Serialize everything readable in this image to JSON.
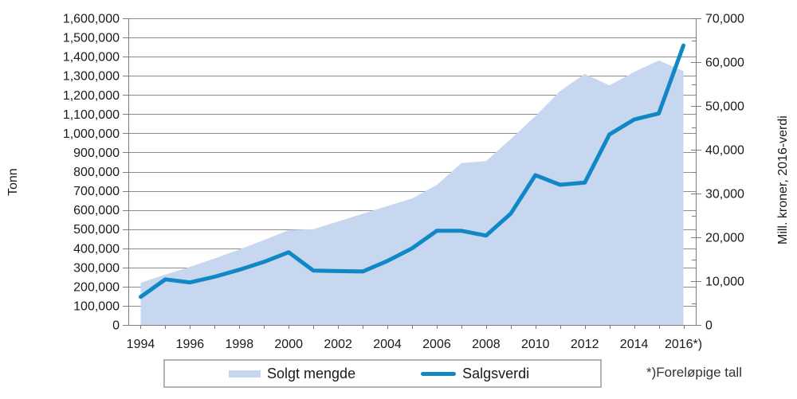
{
  "chart_data": {
    "type": "area+line combo",
    "categories": [
      1994,
      1995,
      1996,
      1997,
      1998,
      1999,
      2000,
      2001,
      2002,
      2003,
      2004,
      2005,
      2006,
      2007,
      2008,
      2009,
      2010,
      2011,
      2012,
      2013,
      2014,
      2015,
      2016
    ],
    "series": [
      {
        "name": "Solgt mengde",
        "type": "area",
        "axis": "left",
        "unit": "tonn",
        "color": "#c8d7f0",
        "values": [
          220000,
          263000,
          303000,
          347000,
          394000,
          443000,
          495000,
          500000,
          540000,
          580000,
          620000,
          660000,
          730000,
          845000,
          855000,
          970000,
          1090000,
          1220000,
          1310000,
          1250000,
          1320000,
          1380000,
          1325000
        ]
      },
      {
        "name": "Salgsverdi",
        "type": "line",
        "axis": "right",
        "unit": "mill. kroner, 2016-verdi",
        "color": "#1088c6",
        "values": [
          6400,
          10400,
          9700,
          11000,
          12600,
          14400,
          16600,
          12400,
          12300,
          12200,
          14600,
          17500,
          21500,
          21500,
          20400,
          25400,
          34200,
          32000,
          32500,
          43500,
          46900,
          48300,
          63800
        ]
      }
    ],
    "left_axis": {
      "title": "Tonn",
      "min": 0,
      "max": 1600000,
      "tick_step": 100000,
      "ticks": [
        "0",
        "100,000",
        "200,000",
        "300,000",
        "400,000",
        "500,000",
        "600,000",
        "700,000",
        "800,000",
        "900,000",
        "1,000,000",
        "1,100,000",
        "1,200,000",
        "1,300,000",
        "1,400,000",
        "1,500,000",
        "1,600,000"
      ]
    },
    "right_axis": {
      "title": "Mill. kroner, 2016-verdi",
      "min": 0,
      "max": 70000,
      "tick_step": 10000,
      "ticks": [
        "0",
        "10,000",
        "20,000",
        "30,000",
        "40,000",
        "50,000",
        "60,000",
        "70,000"
      ]
    },
    "x_axis": {
      "labels": [
        "1994",
        "1996",
        "1998",
        "2000",
        "2002",
        "2004",
        "2006",
        "2008",
        "2010",
        "2012",
        "2014",
        "2016*)"
      ],
      "label_every": 2
    },
    "legend": [
      {
        "label": "Solgt mengde",
        "swatch": "area"
      },
      {
        "label": "Salgsverdi",
        "swatch": "line"
      }
    ],
    "footnote": "*)Foreløpige tall",
    "grid": true,
    "legend_position": "bottom",
    "colors": {
      "area": "#c8d7f0",
      "line": "#1088c6",
      "grid": "#8c8c8c",
      "axis": "#7c7c7c",
      "text": "#1a1a1a",
      "legend_border": "#b3b3b3"
    }
  }
}
